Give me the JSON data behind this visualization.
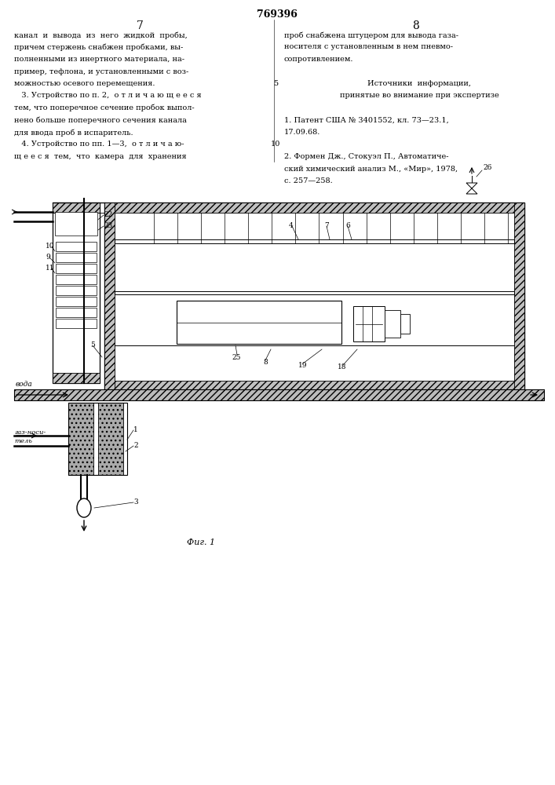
{
  "title": "769396",
  "page_left": "7",
  "page_right": "8",
  "text_left": [
    "канал  и  вывода  из  него  жидкой  пробы,",
    "причем стержень снабжен пробками, вы-",
    "полненными из инертного материала, на-",
    "пример, тефлона, и установленными с воз-",
    "можностью осевого перемещения.",
    "   3. Устройство по п. 2,  о т л и ч а ю щ е е с я",
    "тем, что поперечное сечение пробок выпол-",
    "нено больше поперечного сечения канала",
    "для ввода проб в испаритель.",
    "   4. Устройство по пп. 1—3,  о т л и ч а ю-",
    "щ е е с я  тем,  что  камера  для  хранения"
  ],
  "line_number_5": "5",
  "line_number_10": "10",
  "text_right": [
    "проб снабжена штуцером для вывода газа-",
    "носителя с установленным в нем пневмо-",
    "сопротивлением.",
    "",
    "Источники  информации,",
    "принятые во внимание при экспертизе",
    "",
    "1. Патент США № 3401552, кл. 73—23.1,",
    "17.09.68.",
    "",
    "2. Формен Дж., Стокуэл П., Автоматиче-",
    "ский химический анализ М., «Мир», 1978,",
    "с. 257—258."
  ],
  "fig_caption": "Фиг. 1",
  "background": "#ffffff",
  "line_color": "#000000",
  "text_color": "#000000"
}
